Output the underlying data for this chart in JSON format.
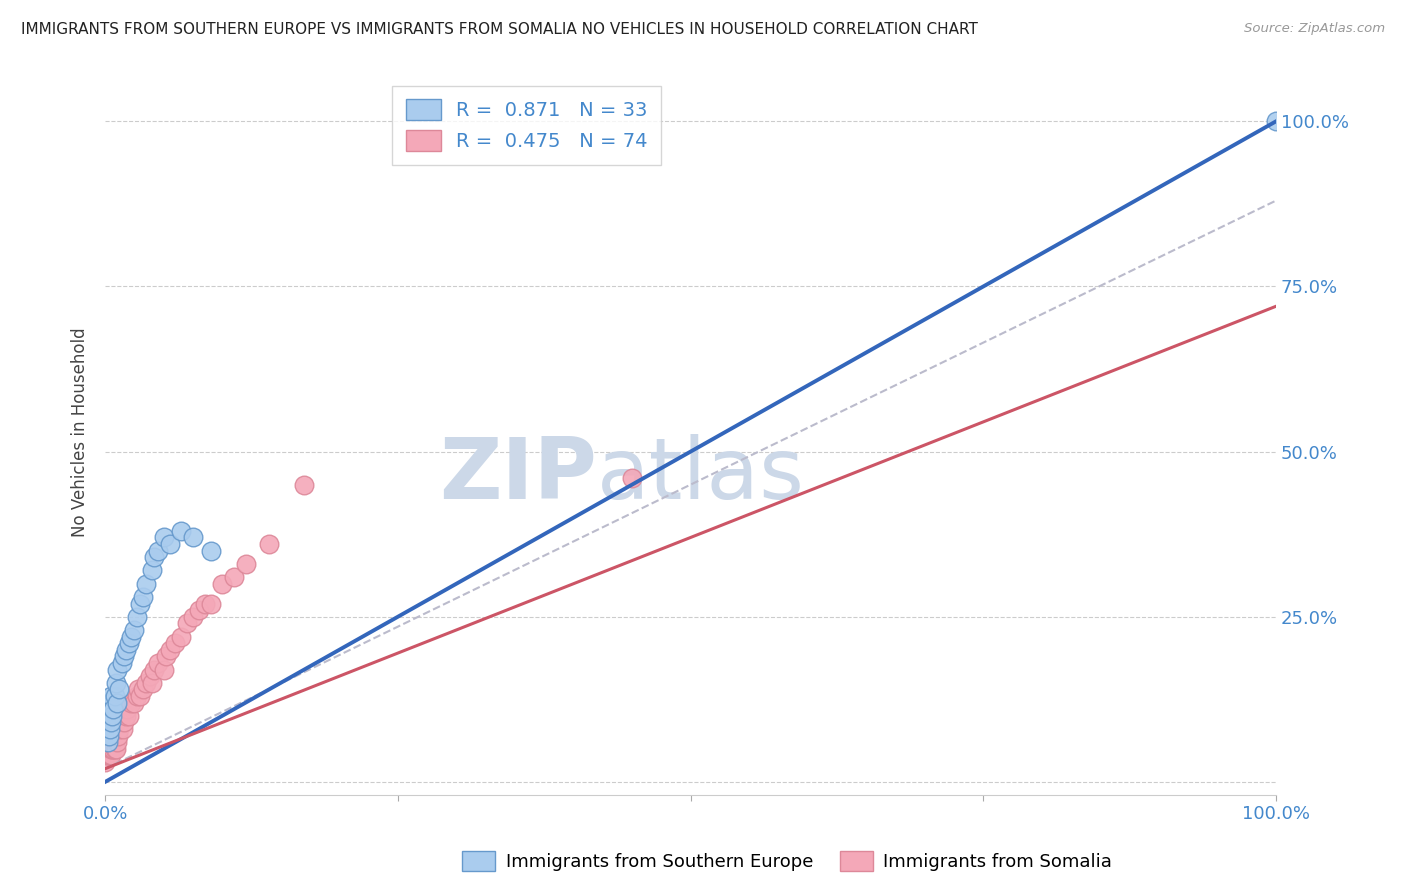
{
  "title": "IMMIGRANTS FROM SOUTHERN EUROPE VS IMMIGRANTS FROM SOMALIA NO VEHICLES IN HOUSEHOLD CORRELATION CHART",
  "source": "Source: ZipAtlas.com",
  "ylabel": "No Vehicles in Household",
  "xlim": [
    0,
    1.0
  ],
  "ylim": [
    -0.02,
    1.08
  ],
  "blue_R": 0.871,
  "blue_N": 33,
  "pink_R": 0.475,
  "pink_N": 74,
  "blue_color": "#aaccee",
  "pink_color": "#f4a8b8",
  "blue_edge_color": "#6699cc",
  "pink_edge_color": "#dd8899",
  "blue_line_color": "#3366bb",
  "pink_line_color": "#cc5566",
  "dashed_line_color": "#bbbbcc",
  "watermark_color": "#ccd8e8",
  "xtick_color": "#4488cc",
  "ytick_color": "#4488cc",
  "grid_color": "#cccccc",
  "blue_points_x": [
    0.002,
    0.003,
    0.003,
    0.004,
    0.004,
    0.005,
    0.005,
    0.006,
    0.007,
    0.008,
    0.009,
    0.01,
    0.01,
    0.012,
    0.014,
    0.016,
    0.018,
    0.02,
    0.022,
    0.025,
    0.027,
    0.03,
    0.032,
    0.035,
    0.04,
    0.042,
    0.045,
    0.05,
    0.055,
    0.065,
    0.075,
    0.09,
    1.0
  ],
  "blue_points_y": [
    0.06,
    0.07,
    0.1,
    0.08,
    0.12,
    0.09,
    0.13,
    0.1,
    0.11,
    0.13,
    0.15,
    0.12,
    0.17,
    0.14,
    0.18,
    0.19,
    0.2,
    0.21,
    0.22,
    0.23,
    0.25,
    0.27,
    0.28,
    0.3,
    0.32,
    0.34,
    0.35,
    0.37,
    0.36,
    0.38,
    0.37,
    0.35,
    1.0
  ],
  "pink_points_x": [
    0.0,
    0.0,
    0.0,
    0.001,
    0.001,
    0.001,
    0.001,
    0.002,
    0.002,
    0.002,
    0.002,
    0.003,
    0.003,
    0.003,
    0.003,
    0.004,
    0.004,
    0.004,
    0.004,
    0.005,
    0.005,
    0.005,
    0.005,
    0.006,
    0.006,
    0.006,
    0.007,
    0.007,
    0.007,
    0.008,
    0.008,
    0.008,
    0.009,
    0.009,
    0.009,
    0.01,
    0.01,
    0.01,
    0.011,
    0.012,
    0.013,
    0.014,
    0.015,
    0.016,
    0.018,
    0.019,
    0.02,
    0.022,
    0.025,
    0.027,
    0.028,
    0.03,
    0.032,
    0.035,
    0.038,
    0.04,
    0.042,
    0.045,
    0.05,
    0.052,
    0.055,
    0.06,
    0.065,
    0.07,
    0.075,
    0.08,
    0.085,
    0.09,
    0.1,
    0.11,
    0.12,
    0.14,
    0.17,
    0.45
  ],
  "pink_points_y": [
    0.03,
    0.05,
    0.08,
    0.04,
    0.05,
    0.07,
    0.09,
    0.04,
    0.05,
    0.07,
    0.1,
    0.04,
    0.05,
    0.07,
    0.09,
    0.04,
    0.06,
    0.08,
    0.1,
    0.04,
    0.05,
    0.07,
    0.1,
    0.05,
    0.06,
    0.08,
    0.05,
    0.07,
    0.09,
    0.05,
    0.07,
    0.09,
    0.05,
    0.07,
    0.09,
    0.06,
    0.08,
    0.11,
    0.07,
    0.08,
    0.09,
    0.1,
    0.08,
    0.09,
    0.1,
    0.11,
    0.1,
    0.12,
    0.12,
    0.13,
    0.14,
    0.13,
    0.14,
    0.15,
    0.16,
    0.15,
    0.17,
    0.18,
    0.17,
    0.19,
    0.2,
    0.21,
    0.22,
    0.24,
    0.25,
    0.26,
    0.27,
    0.27,
    0.3,
    0.31,
    0.33,
    0.36,
    0.45,
    0.46
  ],
  "blue_line_x0": 0.0,
  "blue_line_y0": 0.0,
  "blue_line_x1": 1.0,
  "blue_line_y1": 1.0,
  "pink_line_x0": 0.0,
  "pink_line_y0": 0.02,
  "pink_line_x1": 1.0,
  "pink_line_y1": 0.72,
  "dashed_line_x0": 0.0,
  "dashed_line_y0": 0.02,
  "dashed_line_x1": 1.0,
  "dashed_line_y1": 0.88
}
